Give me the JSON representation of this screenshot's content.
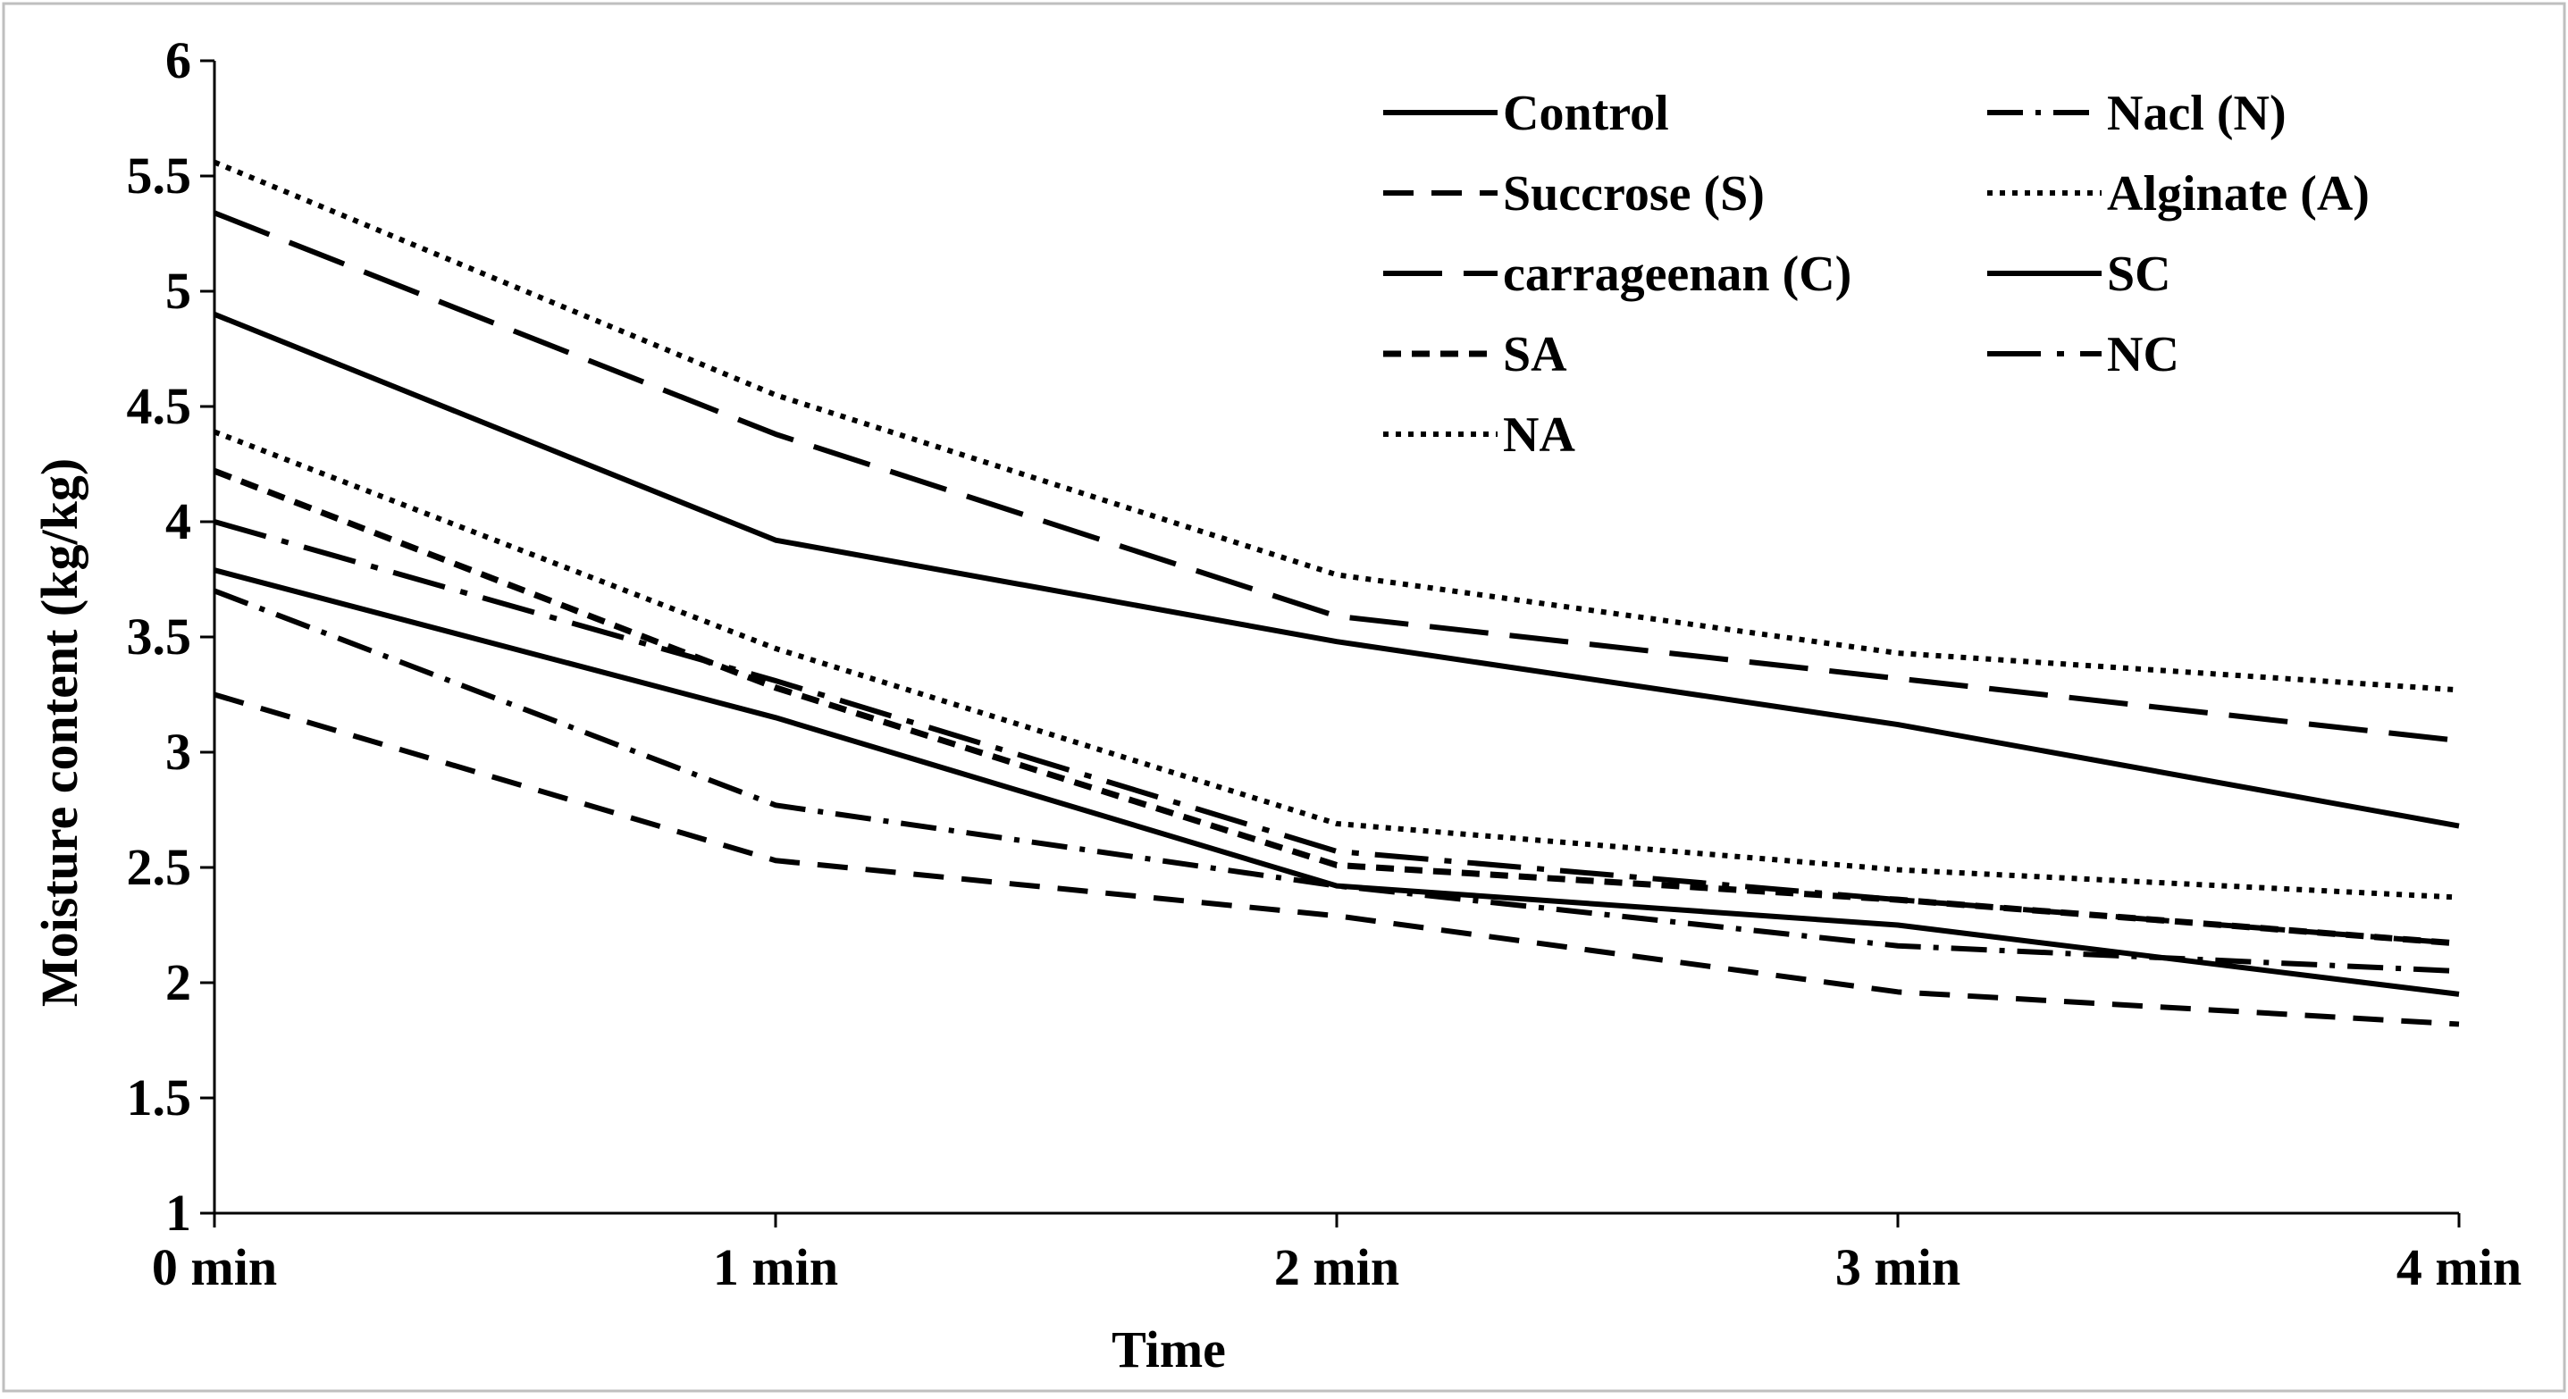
{
  "chart_data": {
    "type": "line",
    "title": "",
    "xlabel": "Time",
    "ylabel": "Moisture content (kg/kg)",
    "categories": [
      "0 min",
      "1 min",
      "2 min",
      "3 min",
      "4 min"
    ],
    "ylim": [
      1,
      6
    ],
    "yticks": [
      "1",
      "1.5",
      "2",
      "2.5",
      "3",
      "3.5",
      "4",
      "4.5",
      "5",
      "5.5",
      "6"
    ],
    "grid": false,
    "legend_position": "top-right",
    "line_color": "#000000",
    "series": [
      {
        "name": "Control",
        "style": "solid",
        "values": [
          3.79,
          3.15,
          2.42,
          2.25,
          1.95
        ]
      },
      {
        "name": "Nacl (N)",
        "style": "dash-dot",
        "values": [
          3.7,
          2.77,
          2.42,
          2.16,
          2.05
        ]
      },
      {
        "name": "Succrose (S)",
        "style": "dash",
        "values": [
          3.25,
          2.53,
          2.29,
          1.96,
          1.82
        ]
      },
      {
        "name": "Alginate (A)",
        "style": "dot",
        "values": [
          5.56,
          4.55,
          3.77,
          3.43,
          3.27
        ]
      },
      {
        "name": "carrageenan (C)",
        "style": "long-dash",
        "values": [
          5.34,
          4.38,
          3.59,
          3.32,
          3.05
        ]
      },
      {
        "name": "SC",
        "style": "solid",
        "values": [
          4.9,
          3.92,
          3.48,
          3.12,
          2.68
        ]
      },
      {
        "name": "SA",
        "style": "dash-short",
        "values": [
          4.22,
          3.28,
          2.51,
          2.36,
          2.17
        ]
      },
      {
        "name": "NC",
        "style": "long-dash-dot",
        "values": [
          4.0,
          3.31,
          2.57,
          2.36,
          2.17
        ]
      },
      {
        "name": "NA",
        "style": "dot",
        "values": [
          4.39,
          3.45,
          2.69,
          2.49,
          2.37
        ]
      }
    ]
  }
}
